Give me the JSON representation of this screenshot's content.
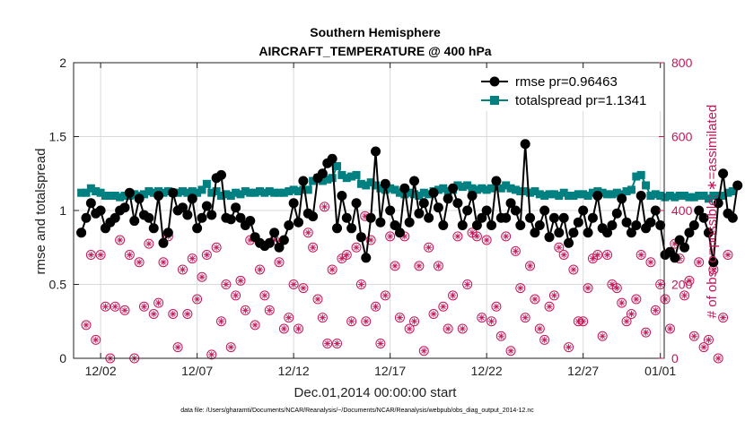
{
  "colors": {
    "rmse": "#000000",
    "spread": "#008080",
    "obs": "#c2185b",
    "grid": "#d9d9d9",
    "axis": "#222222"
  },
  "footer": "data file: /Users/gharamti/Documents/NCAR/Reanalysis/~/Documents/NCAR/Reanalysis/webpub/obs_diag_output_2014-12.nc",
  "chart_data": {
    "type": "line",
    "title": "Southern Hemisphere",
    "subtitle": "AIRCRAFT_TEMPERATURE @ 400 hPa",
    "xlabel": "Dec.01,2014 00:00:00 start",
    "ylabel": "rmse and totalspread",
    "y2label": "# of obs: o=possible; ∗=assimilated",
    "xlim": [
      0.6,
      31.2
    ],
    "ylim": [
      0,
      2
    ],
    "y2lim": [
      0,
      800
    ],
    "grid": true,
    "legend_position": "top-right",
    "x_ticks": [
      {
        "value": 2,
        "label": "12/02"
      },
      {
        "value": 7,
        "label": "12/07"
      },
      {
        "value": 12,
        "label": "12/12"
      },
      {
        "value": 17,
        "label": "12/17"
      },
      {
        "value": 22,
        "label": "12/22"
      },
      {
        "value": 27,
        "label": "12/27"
      },
      {
        "value": 31,
        "label": "01/01"
      }
    ],
    "y_ticks": [
      {
        "value": 0,
        "label": "0"
      },
      {
        "value": 0.5,
        "label": "0.5"
      },
      {
        "value": 1,
        "label": "1"
      },
      {
        "value": 1.5,
        "label": "1.5"
      },
      {
        "value": 2,
        "label": "2"
      }
    ],
    "y2_ticks": [
      {
        "value": 0,
        "label": "0"
      },
      {
        "value": 200,
        "label": "200"
      },
      {
        "value": 400,
        "label": "400"
      },
      {
        "value": 600,
        "label": "600"
      },
      {
        "value": 800,
        "label": "800"
      }
    ],
    "time_start": 1.0,
    "time_step": 0.25,
    "series": [
      {
        "name": "rmse",
        "legend": "rmse pr=0.96463",
        "axis": "left",
        "style": "circle-line",
        "values": [
          0.85,
          0.95,
          1.05,
          0.98,
          1.0,
          0.88,
          0.92,
          0.95,
          1.0,
          1.02,
          1.12,
          0.93,
          1.08,
          0.97,
          0.95,
          0.88,
          1.1,
          0.78,
          0.85,
          1.12,
          1.0,
          1.02,
          0.97,
          1.08,
          0.88,
          0.95,
          1.03,
          0.97,
          1.22,
          1.24,
          0.95,
          0.94,
          1.02,
          0.95,
          0.9,
          0.93,
          0.82,
          0.78,
          0.76,
          0.78,
          0.85,
          0.75,
          0.8,
          0.9,
          1.05,
          0.92,
          1.2,
          0.98,
          0.96,
          1.22,
          1.25,
          1.32,
          1.35,
          0.88,
          1.1,
          0.95,
          0.88,
          1.05,
          0.82,
          0.68,
          0.95,
          1.4,
          0.92,
          1.18,
          1.0,
          0.9,
          0.85,
          1.15,
          0.92,
          1.2,
          0.98,
          1.05,
          0.95,
          1.12,
          1.02,
          0.9,
          1.08,
          1.15,
          1.05,
          0.9,
          1.0,
          1.1,
          0.9,
          0.95,
          1.0,
          0.9,
          1.2,
          0.95,
          0.95,
          1.05,
          1.0,
          0.9,
          1.45,
          0.95,
          0.85,
          0.9,
          1.0,
          0.82,
          0.95,
          0.85,
          0.95,
          0.78,
          0.85,
          0.92,
          1.0,
          0.85,
          0.95,
          1.1,
          0.88,
          0.85,
          0.9,
          0.98,
          1.08,
          0.92,
          0.85,
          0.9,
          1.1,
          0.88,
          0.92,
          1.0,
          0.9,
          0.7,
          0.72,
          0.68,
          0.8,
          0.75,
          0.85,
          0.9,
          1.0,
          0.95,
          0.85,
          0.65,
          1.05,
          1.25,
          0.98,
          0.95,
          1.17
        ]
      },
      {
        "name": "totalspread",
        "legend": "totalspread pr=1.1341",
        "axis": "left",
        "style": "square-line",
        "values": [
          1.12,
          1.12,
          1.15,
          1.13,
          1.12,
          1.1,
          1.1,
          1.1,
          1.09,
          1.1,
          1.1,
          1.11,
          1.1,
          1.11,
          1.13,
          1.12,
          1.13,
          1.12,
          1.13,
          1.12,
          1.12,
          1.13,
          1.12,
          1.13,
          1.12,
          1.14,
          1.18,
          1.12,
          1.13,
          1.1,
          1.11,
          1.1,
          1.12,
          1.11,
          1.13,
          1.12,
          1.12,
          1.13,
          1.12,
          1.13,
          1.12,
          1.12,
          1.12,
          1.13,
          1.14,
          1.13,
          1.14,
          1.14,
          1.2,
          1.22,
          1.2,
          1.21,
          1.22,
          1.3,
          1.24,
          1.22,
          1.23,
          1.24,
          1.18,
          1.17,
          1.19,
          1.17,
          1.15,
          1.14,
          1.15,
          1.14,
          1.12,
          1.11,
          1.12,
          1.11,
          1.1,
          1.12,
          1.11,
          1.13,
          1.14,
          1.15,
          1.13,
          1.14,
          1.17,
          1.16,
          1.17,
          1.15,
          1.14,
          1.15,
          1.14,
          1.15,
          1.16,
          1.15,
          1.17,
          1.15,
          1.14,
          1.13,
          1.13,
          1.12,
          1.13,
          1.11,
          1.1,
          1.11,
          1.11,
          1.1,
          1.12,
          1.1,
          1.1,
          1.11,
          1.11,
          1.1,
          1.12,
          1.13,
          1.12,
          1.11,
          1.11,
          1.12,
          1.11,
          1.13,
          1.14,
          1.23,
          1.24,
          1.17,
          1.1,
          1.11,
          1.1,
          1.09,
          1.1,
          1.09,
          1.1,
          1.1,
          1.09,
          1.09,
          1.1,
          1.1,
          1.08,
          1.1,
          1.1,
          1.1,
          1.12,
          1.13
        ]
      },
      {
        "name": "obs possible",
        "axis": "right",
        "style": "o-asterisk",
        "values": [
          340,
          90,
          280,
          50,
          280,
          140,
          0,
          140,
          320,
          130,
          280,
          0,
          260,
          140,
          310,
          120,
          150,
          260,
          330,
          120,
          30,
          240,
          120,
          270,
          160,
          220,
          280,
          10,
          300,
          100,
          200,
          30,
          170,
          210,
          130,
          320,
          90,
          240,
          170,
          130,
          320,
          260,
          80,
          110,
          200,
          80,
          190,
          340,
          300,
          160,
          110,
          40,
          240,
          40,
          270,
          280,
          100,
          300,
          200,
          100,
          320,
          140,
          40,
          170,
          330,
          250,
          110,
          330,
          80,
          100,
          250,
          20,
          300,
          120,
          250,
          140,
          80,
          170,
          330,
          80,
          200,
          340,
          330,
          110,
          320,
          100,
          140,
          60,
          330,
          20,
          290,
          190,
          110,
          250,
          160,
          80,
          50,
          140,
          170,
          300,
          280,
          30,
          240,
          100,
          100,
          190,
          270,
          280,
          60,
          280,
          200,
          190,
          150,
          100,
          120,
          160,
          280,
          70,
          260,
          130,
          200,
          160,
          80,
          310,
          270,
          170,
          210,
          60,
          260,
          30,
          50,
          240,
          0,
          110,
          280
        ],
        "extra_points": [
          {
            "x": 13.6,
            "y": 410
          },
          {
            "x": 15.7,
            "y": 385
          }
        ]
      }
    ]
  }
}
